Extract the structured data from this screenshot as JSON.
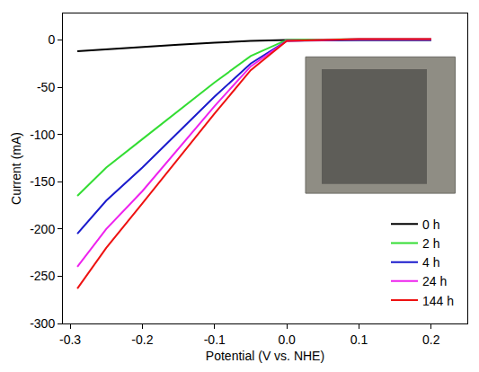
{
  "chart_data": {
    "type": "line",
    "x_label": "Potential (V vs. NHE)",
    "y_label": "Current (mA)",
    "x": [
      -0.29,
      -0.25,
      -0.2,
      -0.15,
      -0.1,
      -0.05,
      0,
      0.1,
      0.2
    ],
    "series": [
      {
        "name": "0 h",
        "color": "#000000",
        "values": [
          -12,
          -10,
          -7,
          -5,
          -3,
          -1,
          0,
          0,
          0
        ]
      },
      {
        "name": "2 h",
        "color": "#33dd33",
        "values": [
          -165,
          -135,
          -105,
          -75,
          -45,
          -17,
          0,
          1,
          1
        ]
      },
      {
        "name": "4 h",
        "color": "#1a1acc",
        "values": [
          -205,
          -170,
          -135,
          -97,
          -60,
          -25,
          -1,
          0,
          0
        ]
      },
      {
        "name": "24 h",
        "color": "#ee22ee",
        "values": [
          -240,
          -200,
          -160,
          -115,
          -70,
          -28,
          -1,
          1,
          1
        ]
      },
      {
        "name": "144 h",
        "color": "#ee1111",
        "values": [
          -263,
          -220,
          -173,
          -125,
          -78,
          -32,
          -1,
          1,
          1
        ]
      }
    ],
    "xlim": [
      -0.31,
      0.25
    ],
    "xticks": [
      -0.3,
      -0.2,
      -0.1,
      {
        "value": 0,
        "label": "0.0"
      },
      0.1,
      0.2
    ],
    "ylim": [
      -300,
      28
    ],
    "yticks": [
      -300,
      -250,
      -200,
      -150,
      -100,
      -50,
      0
    ],
    "grid": false,
    "legend": "bottom right"
  }
}
